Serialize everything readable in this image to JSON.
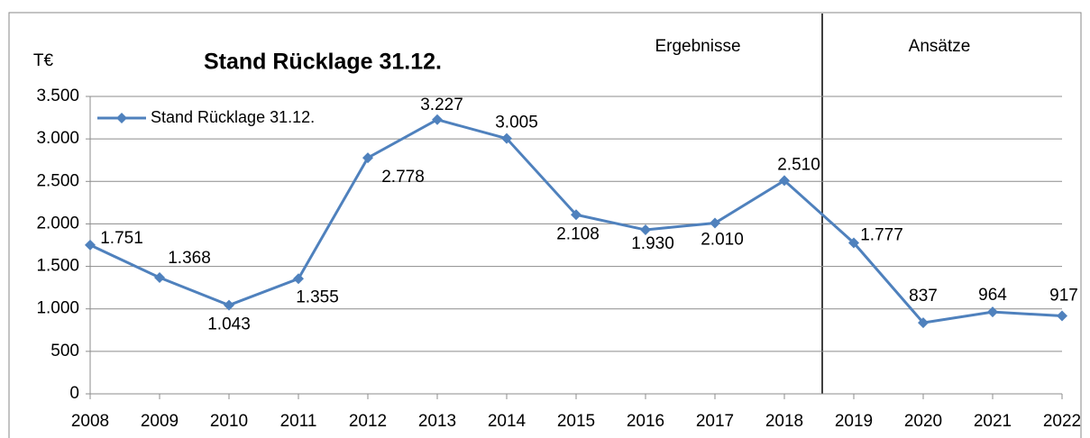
{
  "chart_data": {
    "type": "line",
    "title": "Stand Rücklage 31.12.",
    "y_label": "T€",
    "annotations": [
      "Ergebnisse",
      "Ansätze"
    ],
    "categories": [
      "2008",
      "2009",
      "2010",
      "2011",
      "2012",
      "2013",
      "2014",
      "2015",
      "2016",
      "2017",
      "2018",
      "2019",
      "2020",
      "2021",
      "2022"
    ],
    "series": [
      {
        "name": "Stand Rücklage 31.12.",
        "color": "#4f81bd",
        "values": [
          1751,
          1368,
          1043,
          1355,
          2778,
          3227,
          3005,
          2108,
          1930,
          2010,
          2510,
          1777,
          837,
          964,
          917
        ],
        "value_labels": [
          "1.751",
          "1.368",
          "1.043",
          "1.355",
          "2.778",
          "3.227",
          "3.005",
          "2.108",
          "1.930",
          "2.010",
          "2.510",
          "1.777",
          "837",
          "964",
          "917"
        ]
      }
    ],
    "ylim": [
      0,
      3500
    ],
    "yticks": [
      0,
      500,
      {
        "value": 1000,
        "label": "1.000"
      },
      {
        "value": 1500,
        "label": "1.500"
      },
      {
        "value": 2000,
        "label": "2.000"
      },
      {
        "value": 2500,
        "label": "2.500"
      },
      {
        "value": 3000,
        "label": "3.000"
      },
      {
        "value": 3500,
        "label": "3.500"
      }
    ],
    "grid": true,
    "legend": "top-left"
  }
}
